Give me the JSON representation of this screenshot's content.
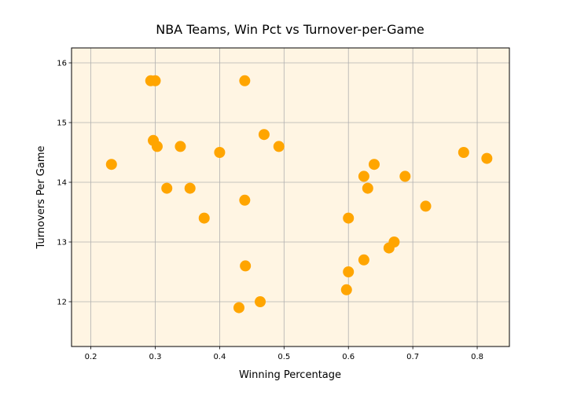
{
  "chart_data": {
    "type": "scatter",
    "title": "NBA Teams, Win Pct vs Turnover-per-Game",
    "xlabel": "Winning Percentage",
    "ylabel": "Turnovers Per Game",
    "xlim": [
      0.17,
      0.85
    ],
    "ylim": [
      11.25,
      16.25
    ],
    "xticks": [
      0.2,
      0.3,
      0.4,
      0.5,
      0.6,
      0.7,
      0.8
    ],
    "yticks": [
      12,
      13,
      14,
      15,
      16
    ],
    "grid": true,
    "background_color": "#fff5e3",
    "marker_color": "#ffa500",
    "points": [
      {
        "x": 0.232,
        "y": 14.3
      },
      {
        "x": 0.293,
        "y": 15.7
      },
      {
        "x": 0.3,
        "y": 15.7
      },
      {
        "x": 0.297,
        "y": 14.7
      },
      {
        "x": 0.303,
        "y": 14.6
      },
      {
        "x": 0.318,
        "y": 13.9
      },
      {
        "x": 0.339,
        "y": 14.6
      },
      {
        "x": 0.354,
        "y": 13.9
      },
      {
        "x": 0.376,
        "y": 13.4
      },
      {
        "x": 0.4,
        "y": 14.5
      },
      {
        "x": 0.43,
        "y": 11.9
      },
      {
        "x": 0.439,
        "y": 15.7
      },
      {
        "x": 0.439,
        "y": 13.7
      },
      {
        "x": 0.44,
        "y": 12.6
      },
      {
        "x": 0.463,
        "y": 12.0
      },
      {
        "x": 0.469,
        "y": 14.8
      },
      {
        "x": 0.492,
        "y": 14.6
      },
      {
        "x": 0.597,
        "y": 12.2
      },
      {
        "x": 0.6,
        "y": 13.4
      },
      {
        "x": 0.6,
        "y": 12.5
      },
      {
        "x": 0.624,
        "y": 14.1
      },
      {
        "x": 0.624,
        "y": 12.7
      },
      {
        "x": 0.63,
        "y": 13.9
      },
      {
        "x": 0.64,
        "y": 14.3
      },
      {
        "x": 0.663,
        "y": 12.9
      },
      {
        "x": 0.671,
        "y": 13.0
      },
      {
        "x": 0.688,
        "y": 14.1
      },
      {
        "x": 0.72,
        "y": 13.6
      },
      {
        "x": 0.779,
        "y": 14.5
      },
      {
        "x": 0.815,
        "y": 14.4
      }
    ]
  }
}
